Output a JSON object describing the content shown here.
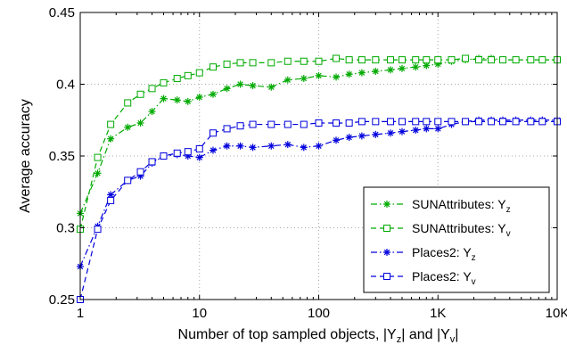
{
  "chart_data": {
    "type": "line",
    "xscale": "log",
    "xlim": [
      1,
      10000
    ],
    "ylim": [
      0.25,
      0.45
    ],
    "xticks": [
      1,
      10,
      100,
      1000,
      10000
    ],
    "xtick_labels": [
      "1",
      "10",
      "100",
      "1K",
      "10K"
    ],
    "yticks": [
      0.25,
      0.3,
      0.35,
      0.4,
      0.45
    ],
    "ytick_labels": [
      "0.25",
      "0.3",
      "0.35",
      "0.4",
      "0.45"
    ],
    "xlabel_parts": {
      "prefix": "Number of top sampled objects, |Y",
      "sub1": "z",
      "middle": "| and |Y",
      "sub2": "v",
      "suffix": "|"
    },
    "ylabel": "Average accuracy",
    "grid": true,
    "legend_position": "bottom-right",
    "series": [
      {
        "name": "SUNAttributes: Y",
        "subscript": "z",
        "color": "#00aa00",
        "marker": "asterisk",
        "dash": "dashdot",
        "points": [
          [
            1,
            0.31
          ],
          [
            1.4,
            0.338
          ],
          [
            1.8,
            0.362
          ],
          [
            2.5,
            0.37
          ],
          [
            3.2,
            0.373
          ],
          [
            4,
            0.381
          ],
          [
            5,
            0.39
          ],
          [
            6.5,
            0.389
          ],
          [
            8,
            0.388
          ],
          [
            10,
            0.391
          ],
          [
            13,
            0.393
          ],
          [
            17,
            0.397
          ],
          [
            22,
            0.4
          ],
          [
            28,
            0.399
          ],
          [
            40,
            0.398
          ],
          [
            55,
            0.403
          ],
          [
            75,
            0.404
          ],
          [
            100,
            0.406
          ],
          [
            140,
            0.405
          ],
          [
            180,
            0.407
          ],
          [
            230,
            0.408
          ],
          [
            300,
            0.409
          ],
          [
            400,
            0.41
          ],
          [
            500,
            0.411
          ],
          [
            650,
            0.412
          ],
          [
            800,
            0.413
          ],
          [
            1000,
            0.414
          ],
          [
            1300,
            0.416
          ],
          [
            1700,
            0.417
          ],
          [
            2200,
            0.418
          ],
          [
            2800,
            0.418
          ],
          [
            3500,
            0.417
          ],
          [
            4500,
            0.417
          ],
          [
            6000,
            0.417
          ],
          [
            7500,
            0.417
          ],
          [
            10000,
            0.417
          ]
        ]
      },
      {
        "name": "SUNAttributes: Y",
        "subscript": "v",
        "color": "#00aa00",
        "marker": "square",
        "dash": "dashed",
        "points": [
          [
            1,
            0.299
          ],
          [
            1.4,
            0.349
          ],
          [
            1.8,
            0.372
          ],
          [
            2.5,
            0.387
          ],
          [
            3.2,
            0.393
          ],
          [
            4,
            0.397
          ],
          [
            5,
            0.401
          ],
          [
            6.5,
            0.404
          ],
          [
            8,
            0.406
          ],
          [
            10,
            0.408
          ],
          [
            13,
            0.412
          ],
          [
            17,
            0.414
          ],
          [
            22,
            0.415
          ],
          [
            28,
            0.415
          ],
          [
            40,
            0.415
          ],
          [
            55,
            0.416
          ],
          [
            75,
            0.416
          ],
          [
            100,
            0.416
          ],
          [
            140,
            0.418
          ],
          [
            180,
            0.417
          ],
          [
            230,
            0.417
          ],
          [
            300,
            0.417
          ],
          [
            400,
            0.417
          ],
          [
            500,
            0.417
          ],
          [
            650,
            0.417
          ],
          [
            800,
            0.417
          ],
          [
            1000,
            0.417
          ],
          [
            1300,
            0.417
          ],
          [
            1700,
            0.418
          ],
          [
            2200,
            0.417
          ],
          [
            2800,
            0.417
          ],
          [
            3500,
            0.417
          ],
          [
            4500,
            0.417
          ],
          [
            6000,
            0.417
          ],
          [
            7500,
            0.417
          ],
          [
            10000,
            0.417
          ]
        ]
      },
      {
        "name": "Places2: Y",
        "subscript": "z",
        "color": "#0000dd",
        "marker": "asterisk",
        "dash": "dashdot",
        "points": [
          [
            1,
            0.273
          ],
          [
            1.4,
            0.301
          ],
          [
            1.8,
            0.323
          ],
          [
            2.5,
            0.333
          ],
          [
            3.2,
            0.336
          ],
          [
            4,
            0.345
          ],
          [
            5,
            0.35
          ],
          [
            6.5,
            0.351
          ],
          [
            8,
            0.35
          ],
          [
            10,
            0.349
          ],
          [
            13,
            0.354
          ],
          [
            17,
            0.357
          ],
          [
            22,
            0.357
          ],
          [
            28,
            0.356
          ],
          [
            40,
            0.357
          ],
          [
            55,
            0.358
          ],
          [
            75,
            0.356
          ],
          [
            100,
            0.357
          ],
          [
            140,
            0.361
          ],
          [
            180,
            0.363
          ],
          [
            230,
            0.364
          ],
          [
            300,
            0.365
          ],
          [
            400,
            0.366
          ],
          [
            500,
            0.367
          ],
          [
            650,
            0.368
          ],
          [
            800,
            0.369
          ],
          [
            1000,
            0.369
          ],
          [
            1300,
            0.372
          ],
          [
            1700,
            0.374
          ],
          [
            2200,
            0.375
          ],
          [
            2800,
            0.375
          ],
          [
            3500,
            0.375
          ],
          [
            4500,
            0.375
          ],
          [
            6000,
            0.375
          ],
          [
            7500,
            0.375
          ],
          [
            10000,
            0.375
          ]
        ]
      },
      {
        "name": "Places2: Y",
        "subscript": "v",
        "color": "#0000dd",
        "marker": "square",
        "dash": "dashed",
        "points": [
          [
            1,
            0.25
          ],
          [
            1.4,
            0.299
          ],
          [
            1.8,
            0.319
          ],
          [
            2.5,
            0.333
          ],
          [
            3.2,
            0.339
          ],
          [
            4,
            0.346
          ],
          [
            5,
            0.35
          ],
          [
            6.5,
            0.352
          ],
          [
            8,
            0.353
          ],
          [
            10,
            0.355
          ],
          [
            13,
            0.366
          ],
          [
            17,
            0.369
          ],
          [
            22,
            0.371
          ],
          [
            28,
            0.372
          ],
          [
            40,
            0.372
          ],
          [
            55,
            0.372
          ],
          [
            75,
            0.372
          ],
          [
            100,
            0.373
          ],
          [
            140,
            0.373
          ],
          [
            180,
            0.373
          ],
          [
            230,
            0.374
          ],
          [
            300,
            0.374
          ],
          [
            400,
            0.374
          ],
          [
            500,
            0.374
          ],
          [
            650,
            0.374
          ],
          [
            800,
            0.374
          ],
          [
            1000,
            0.374
          ],
          [
            1300,
            0.374
          ],
          [
            1700,
            0.374
          ],
          [
            2200,
            0.374
          ],
          [
            2800,
            0.374
          ],
          [
            3500,
            0.374
          ],
          [
            4500,
            0.374
          ],
          [
            6000,
            0.374
          ],
          [
            7500,
            0.374
          ],
          [
            10000,
            0.374
          ]
        ]
      }
    ]
  }
}
